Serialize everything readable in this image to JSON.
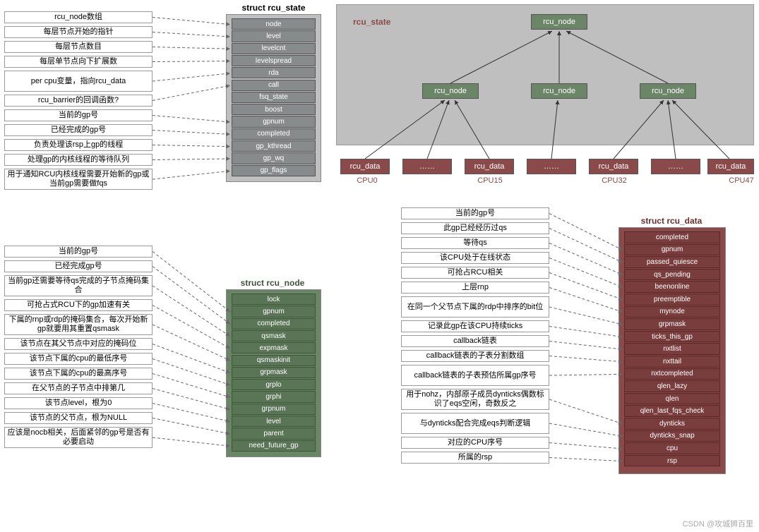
{
  "colors": {
    "gray_bg": "#bfbfbf",
    "field_gray": "#888b8c",
    "field_green": "#6b8567",
    "field_red": "#8b4a4a",
    "arrow": "#666"
  },
  "rcu_state": {
    "title": "struct rcu_state",
    "box_bg": "#bfbfbf",
    "field_bg": "#888b8c",
    "fields": [
      "node",
      "level",
      "levelcnt",
      "levelspread",
      "rda",
      "call",
      "fsq_state",
      "boost",
      "gpnum",
      "completed",
      "gp_kthread",
      "gp_wq",
      "gp_flags"
    ],
    "descs": [
      "rcu_node数组",
      "每层节点开始的指针",
      "每层节点数目",
      "每层单节点向下扩展数",
      "per cpu变量，指向rcu_data",
      "rcu_barrier的回调函数?",
      "当前的gp号",
      "已经完成的gp号",
      "负责处理该rsp上gp的线程",
      "处理gp的内核线程的等待队列",
      "用于通知RCU内核线程需要开始新的gp或当前gp需要做fqs"
    ]
  },
  "rcu_node": {
    "title": "struct rcu_node",
    "box_bg": "#6b8567",
    "field_bg": "#6b8567",
    "fields": [
      "lock",
      "gpnum",
      "completed",
      "qsmask",
      "expmask",
      "qsmaskinit",
      "grpmask",
      "grplo",
      "grphi",
      "grpnum",
      "level",
      "parent",
      "need_future_gp"
    ],
    "descs": [
      "当前的gp号",
      "已经完成gp号",
      "当前gp还需要等待qs完成的子节点掩码集合",
      "可抢占式RCU下的gp加速有关",
      "下属的rnp或rdp的掩码集合，每次开始新gp就要用其重置qsmask",
      "该节点在其父节点中对应的掩码位",
      "该节点下属的cpu的最低序号",
      "该节点下属的cpu的最高序号",
      "在父节点的子节点中排第几",
      "该节点level，根为0",
      "该节点的父节点，根为NULL",
      "应该是nocb相关，后面紧邻的gp号是否有必要启动"
    ]
  },
  "rcu_data": {
    "title": "struct rcu_data",
    "box_bg": "#8b4a4a",
    "field_bg": "#8b4a4a",
    "fields": [
      "completed",
      "gpnum",
      "passed_quiesce",
      "qs_pending",
      "beenonline",
      "preemptible",
      "mynode",
      "grpmask",
      "ticks_this_gp",
      "nxtlist",
      "nxttail",
      "nxtcompleted",
      "qlen_lazy",
      "qlen",
      "qlen_last_fqs_check",
      "dynticks",
      "dynticks_snap",
      "cpu",
      "rsp"
    ],
    "descs": [
      "当前的gp号",
      "此gp已经经历过qs",
      "等待qs",
      "该CPU处于在线状态",
      "可抢占RCU相关",
      "上层rnp",
      "在同一个父节点下属的rdp中排序的bit位",
      "记录此gp在该CPU持续ticks",
      "callback链表",
      "callback链表的子表分割数组",
      "callback链表的子表预估所属gp序号",
      "用于nohz，内部原子成员dynticks偶数标识了eqs空闲，奇数反之",
      "与dynticks配合完成eqs判断逻辑",
      "对应的CPU序号",
      "所属的rsp"
    ]
  },
  "tree": {
    "label": "rcu_state",
    "node_label": "rcu_node",
    "data_label": "rcu_data",
    "dots": "……",
    "cpus": [
      "CPU0",
      "CPU15",
      "CPU32",
      "CPU47"
    ]
  },
  "watermark": "CSDN @攻城狮百里"
}
